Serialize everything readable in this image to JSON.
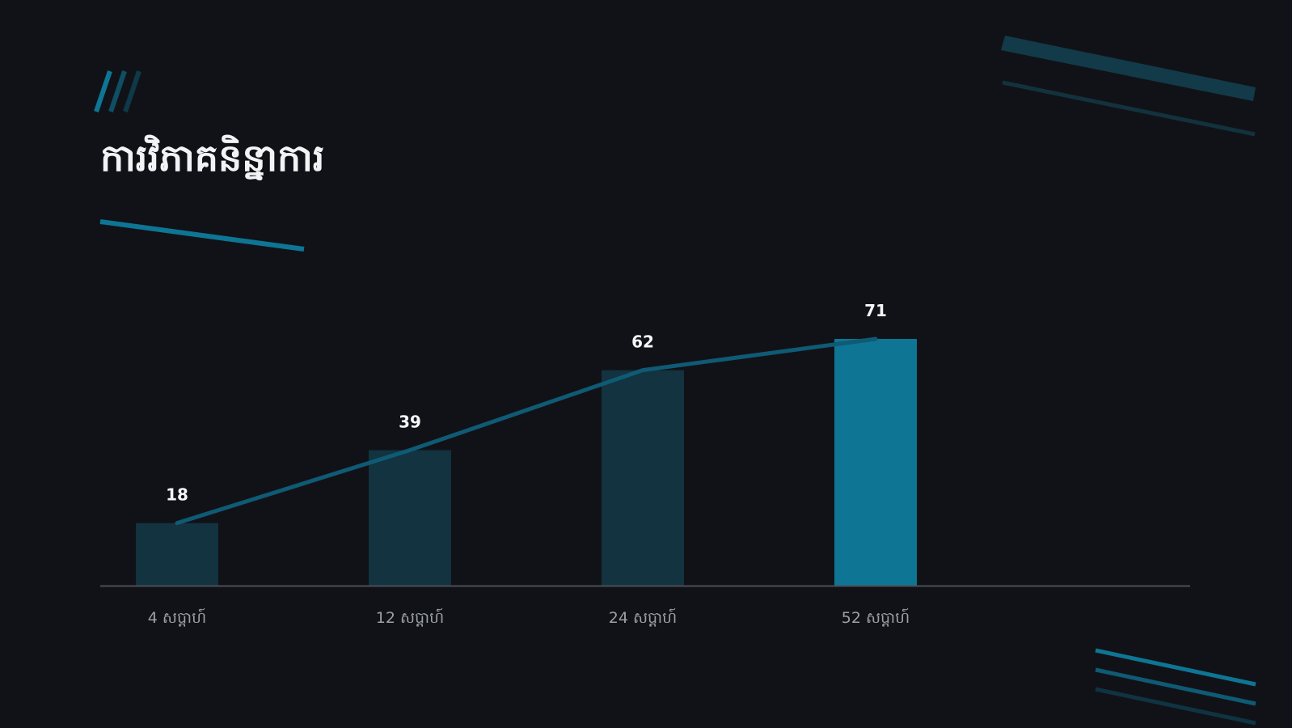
{
  "page": {
    "title": "ការវិភាគនិន្នាការ"
  },
  "colors": {
    "background": "#111217",
    "bar_dim": "#12333f",
    "bar_highlight": "#0e7594",
    "trend_line": "#0f5a74",
    "axis": "#4a4e55",
    "accent": "#0e7594"
  },
  "chart_data": {
    "type": "bar",
    "categories": [
      "4 សប្តាហ៍",
      "12 សប្តាហ៍",
      "24 សប្តាហ៍",
      "52 សប្តាហ៍"
    ],
    "values": [
      18,
      39,
      62,
      71
    ],
    "highlight_index": 3,
    "trend_line": true,
    "data_labels": true,
    "grid": false,
    "legend": "none",
    "ylim": [
      0,
      71
    ]
  }
}
